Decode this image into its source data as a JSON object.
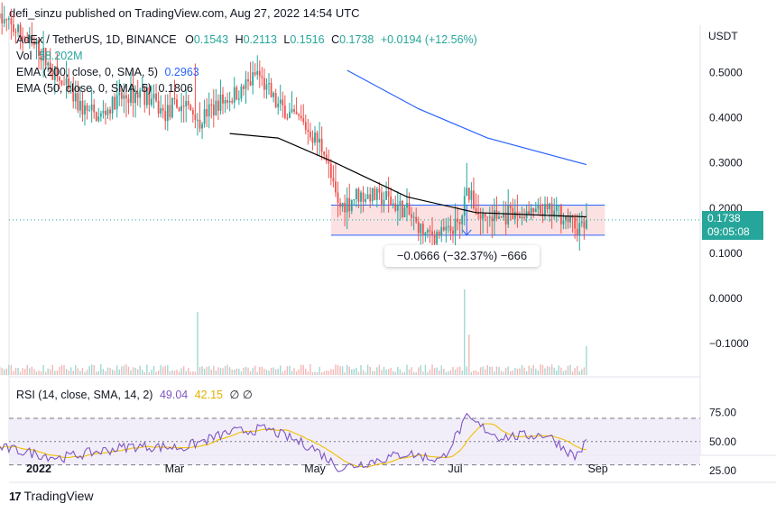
{
  "header": {
    "text": "defi_sinzu published on TradingView.com, Aug 27, 2022 14:54 UTC"
  },
  "legend": {
    "symbol": "AdEx / TetherUS, 1D, BINANCE",
    "o_label": "O",
    "o_value": "0.1543",
    "h_label": "H",
    "h_value": "0.2113",
    "l_label": "L",
    "l_value": "0.1516",
    "c_label": "C",
    "c_value": "0.1738",
    "change": "+0.0194 (+12.56%)",
    "vol_label": "Vol",
    "vol_value": "58.202M",
    "ema200_label": "EMA (200, close, 0, SMA, 5)",
    "ema200_value": "0.2963",
    "ema50_label": "EMA (50, close, 0, SMA, 5)",
    "ema50_value": "0.1806",
    "rsi_label": "RSI (14, close, SMA, 14, 2)",
    "rsi_value": "49.04",
    "rsi_ma_value": "42.15",
    "rsi_extra": "∅ ∅"
  },
  "price_tag": {
    "price": "0.1738",
    "countdown": "09:05:08"
  },
  "measure_label": "−0.0666 (−32.37%) −666",
  "footer": {
    "brand": "TradingView",
    "logo": "17"
  },
  "colors": {
    "up": "#26a69a",
    "down": "#ef5350",
    "ema200": "#2962ff",
    "ema50": "#000000",
    "rsi": "#7e57c2",
    "rsi_ma": "#f0c000",
    "range_fill": "#fbe1e1",
    "range_border": "#2962ff"
  },
  "chart_data": {
    "type": "candlestick",
    "symbol": "AdEx / TetherUS",
    "timeframe": "1D",
    "exchange": "BINANCE",
    "currency_label": "USDT",
    "price_axis": {
      "ticks": [
        "0.5000",
        "0.4000",
        "0.3000",
        "0.2000",
        "0.1000",
        "0.0000",
        "−0.1000"
      ],
      "tick_values": [
        0.5,
        0.4,
        0.3,
        0.2,
        0.1,
        0.0,
        -0.1
      ]
    },
    "time_axis": {
      "labels": [
        "2022",
        "Mar",
        "May",
        "Jul",
        "Sep"
      ]
    },
    "close_path": [
      [
        "2021-12-15",
        0.62
      ],
      [
        "2021-12-25",
        0.58
      ],
      [
        "2022-01-01",
        0.55
      ],
      [
        "2022-01-10",
        0.48
      ],
      [
        "2022-01-20",
        0.42
      ],
      [
        "2022-01-27",
        0.4
      ],
      [
        "2022-02-05",
        0.44
      ],
      [
        "2022-02-15",
        0.46
      ],
      [
        "2022-02-24",
        0.41
      ],
      [
        "2022-03-05",
        0.43
      ],
      [
        "2022-03-12",
        0.4
      ],
      [
        "2022-03-20",
        0.43
      ],
      [
        "2022-03-30",
        0.46
      ],
      [
        "2022-04-06",
        0.5
      ],
      [
        "2022-04-14",
        0.43
      ],
      [
        "2022-04-25",
        0.39
      ],
      [
        "2022-05-05",
        0.33
      ],
      [
        "2022-05-11",
        0.2
      ],
      [
        "2022-05-20",
        0.23
      ],
      [
        "2022-06-01",
        0.22
      ],
      [
        "2022-06-10",
        0.19
      ],
      [
        "2022-06-18",
        0.14
      ],
      [
        "2022-06-28",
        0.15
      ],
      [
        "2022-07-03",
        0.16
      ],
      [
        "2022-07-06",
        0.24
      ],
      [
        "2022-07-12",
        0.18
      ],
      [
        "2022-07-25",
        0.18
      ],
      [
        "2022-08-05",
        0.19
      ],
      [
        "2022-08-15",
        0.19
      ],
      [
        "2022-08-22",
        0.16
      ],
      [
        "2022-08-26",
        0.155
      ],
      [
        "2022-08-27",
        0.1738
      ]
    ],
    "ema200": [
      [
        "2022-05-15",
        0.505
      ],
      [
        "2022-06-15",
        0.42
      ],
      [
        "2022-07-15",
        0.355
      ],
      [
        "2022-08-27",
        0.2963
      ]
    ],
    "ema50": [
      [
        "2022-03-25",
        0.365
      ],
      [
        "2022-04-15",
        0.355
      ],
      [
        "2022-05-10",
        0.3
      ],
      [
        "2022-06-10",
        0.225
      ],
      [
        "2022-07-10",
        0.19
      ],
      [
        "2022-08-27",
        0.1806
      ]
    ],
    "range_box": {
      "top_price": 0.2065,
      "bottom_price": 0.14,
      "start": "2022-05-08",
      "end": "2022-09-04",
      "change_pct": -32.37,
      "change_abs": -0.0666,
      "ticks": -666
    },
    "current": {
      "open": 0.1543,
      "high": 0.2113,
      "low": 0.1516,
      "close": 0.1738,
      "change": 0.0194,
      "change_pct": 12.56,
      "volume": "58.202M"
    },
    "rsi": {
      "levels": [
        30,
        50,
        70
      ],
      "ticks": [
        "75.00",
        "50.00",
        "25.00"
      ],
      "tick_values": [
        75,
        50,
        25
      ],
      "value": 49.04,
      "ma": 42.15,
      "path": [
        [
          "2021-12-15",
          45
        ],
        [
          "2022-01-10",
          36
        ],
        [
          "2022-02-10",
          46
        ],
        [
          "2022-03-05",
          45
        ],
        [
          "2022-03-25",
          58
        ],
        [
          "2022-04-10",
          61
        ],
        [
          "2022-04-30",
          45
        ],
        [
          "2022-05-12",
          27
        ],
        [
          "2022-06-10",
          40
        ],
        [
          "2022-06-25",
          34
        ],
        [
          "2022-07-06",
          70
        ],
        [
          "2022-07-20",
          54
        ],
        [
          "2022-08-10",
          56
        ],
        [
          "2022-08-22",
          37
        ],
        [
          "2022-08-27",
          49
        ]
      ]
    }
  }
}
